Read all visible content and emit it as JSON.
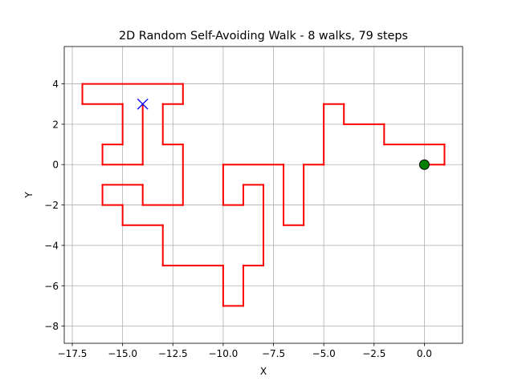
{
  "chart_data": {
    "type": "line",
    "title": "2D Random Self-Avoiding Walk - 8 walks, 79 steps",
    "xlabel": "X",
    "ylabel": "Y",
    "xlim": [
      -17.9,
      1.9
    ],
    "ylim": [
      -8.85,
      5.85
    ],
    "xticks": [
      -17.5,
      -15.0,
      -12.5,
      -10.0,
      -7.5,
      -5.0,
      -2.5,
      0.0
    ],
    "xtick_labels": [
      "−17.5",
      "−15.0",
      "−12.5",
      "−10.0",
      "−7.5",
      "−5.0",
      "−2.5",
      "0.0"
    ],
    "yticks": [
      -8,
      -6,
      -4,
      -2,
      0,
      2,
      4
    ],
    "ytick_labels": [
      "−8",
      "−6",
      "−4",
      "−2",
      "0",
      "2",
      "4"
    ],
    "grid": true,
    "line_color": "#ff0000",
    "path": [
      [
        0,
        0
      ],
      [
        1,
        0
      ],
      [
        1,
        1
      ],
      [
        -2,
        1
      ],
      [
        -2,
        2
      ],
      [
        -4,
        2
      ],
      [
        -4,
        3
      ],
      [
        -5,
        3
      ],
      [
        -5,
        0
      ],
      [
        -6,
        0
      ],
      [
        -6,
        -3
      ],
      [
        -7,
        -3
      ],
      [
        -7,
        0
      ],
      [
        -10,
        0
      ],
      [
        -10,
        -2
      ],
      [
        -9,
        -2
      ],
      [
        -9,
        -1
      ],
      [
        -8,
        -1
      ],
      [
        -8,
        -5
      ],
      [
        -9,
        -5
      ],
      [
        -9,
        -7
      ],
      [
        -10,
        -7
      ],
      [
        -10,
        -5
      ],
      [
        -13,
        -5
      ],
      [
        -13,
        -3
      ],
      [
        -15,
        -3
      ],
      [
        -15,
        -2
      ],
      [
        -16,
        -2
      ],
      [
        -16,
        -1
      ],
      [
        -14,
        -1
      ],
      [
        -14,
        -2
      ],
      [
        -12,
        -2
      ],
      [
        -12,
        1
      ],
      [
        -13,
        1
      ],
      [
        -13,
        3
      ],
      [
        -12,
        3
      ],
      [
        -12,
        4
      ],
      [
        -17,
        4
      ],
      [
        -17,
        3
      ],
      [
        -15,
        3
      ],
      [
        -15,
        1
      ],
      [
        -16,
        1
      ],
      [
        -16,
        0
      ],
      [
        -14,
        0
      ],
      [
        -14,
        3
      ]
    ],
    "start": {
      "x": 0,
      "y": 0,
      "color": "#008000"
    },
    "end": {
      "x": -14,
      "y": 3,
      "color": "#0000ff"
    }
  }
}
